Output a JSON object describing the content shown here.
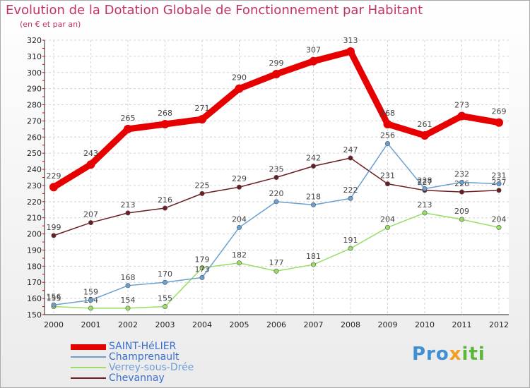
{
  "chart_data": {
    "type": "line",
    "title": "Evolution de la Dotation Globale de Fonctionnement par Habitant",
    "subtitle": "(en € et par an)",
    "xlabel": "",
    "ylabel": "",
    "ylim": [
      150,
      320
    ],
    "y_ticks": [
      150,
      160,
      170,
      180,
      190,
      200,
      210,
      220,
      230,
      240,
      250,
      260,
      270,
      280,
      290,
      300,
      310,
      320
    ],
    "categories": [
      "2000",
      "2001",
      "2002",
      "2003",
      "2004",
      "2005",
      "2006",
      "2007",
      "2008",
      "2009",
      "2010",
      "2011",
      "2012"
    ],
    "grid": true,
    "legend_position": "bottom-left",
    "series": [
      {
        "name": "SAINT-HéLIER",
        "color": "#e60000",
        "values": [
          229,
          243,
          265,
          268,
          271,
          290,
          299,
          307,
          313,
          268,
          261,
          273,
          269
        ]
      },
      {
        "name": "Champrenault",
        "color": "#6a9fd0",
        "values": [
          156,
          159,
          168,
          170,
          173,
          204,
          220,
          218,
          222,
          256,
          228,
          232,
          231
        ]
      },
      {
        "name": "Verrey-sous-Drée",
        "color": "#99dd66",
        "values": [
          155,
          154,
          154,
          155,
          179,
          182,
          177,
          181,
          191,
          204,
          213,
          209,
          204
        ]
      },
      {
        "name": "Chevannay",
        "color": "#6b1e22",
        "values": [
          199,
          207,
          213,
          216,
          225,
          229,
          235,
          242,
          247,
          231,
          227,
          226,
          227
        ]
      }
    ]
  },
  "logo": {
    "p1": "Pro",
    "p2": "x",
    "p3": "iti"
  }
}
